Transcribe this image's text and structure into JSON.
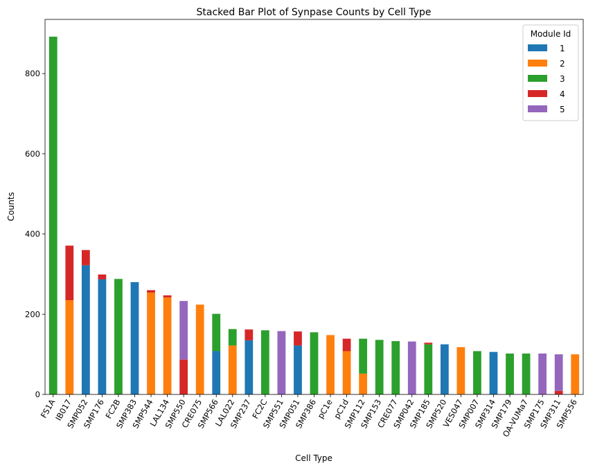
{
  "chart_data": {
    "type": "bar",
    "stacked": true,
    "title": "Stacked Bar Plot of Synpase Counts by Cell Type",
    "xlabel": "Cell Type",
    "ylabel": "Counts",
    "ylim": [
      0,
      935
    ],
    "yticks": [
      0,
      200,
      400,
      600,
      800
    ],
    "grid": false,
    "legend": {
      "title": "Module Id",
      "position": "top-right"
    },
    "categories": [
      "FS1A",
      "IB017",
      "SMP052",
      "SMP176",
      "FC2B",
      "SMP383",
      "SMP544",
      "LAL134",
      "SMP550",
      "CRE075",
      "SMP566",
      "LAL022",
      "SMP237",
      "FC2C",
      "SMP551",
      "SMP051",
      "SMP386",
      "pC1e",
      "pC1d",
      "SMP112",
      "SMP153",
      "CRE077",
      "SMP042",
      "SMP185",
      "SMP520",
      "VES047",
      "SMP007",
      "SMP314",
      "SMP179",
      "OA-VUMa7",
      "SMP175",
      "SMP311",
      "SMP556"
    ],
    "series": [
      {
        "name": "1",
        "color": "#1f77b4",
        "values": [
          0,
          0,
          322,
          287,
          0,
          280,
          0,
          0,
          0,
          0,
          108,
          0,
          135,
          0,
          0,
          122,
          0,
          0,
          0,
          0,
          0,
          0,
          0,
          0,
          125,
          0,
          0,
          106,
          0,
          0,
          0,
          0,
          0
        ]
      },
      {
        "name": "2",
        "color": "#ff7f0e",
        "values": [
          0,
          235,
          0,
          0,
          0,
          0,
          254,
          242,
          0,
          224,
          0,
          122,
          0,
          0,
          0,
          0,
          0,
          148,
          108,
          52,
          0,
          0,
          0,
          0,
          0,
          118,
          0,
          0,
          0,
          0,
          0,
          0,
          100
        ]
      },
      {
        "name": "3",
        "color": "#2ca02c",
        "values": [
          892,
          0,
          0,
          0,
          288,
          0,
          0,
          0,
          0,
          0,
          93,
          41,
          0,
          160,
          0,
          0,
          155,
          0,
          0,
          87,
          136,
          133,
          0,
          125,
          0,
          0,
          108,
          0,
          102,
          102,
          0,
          0,
          0
        ]
      },
      {
        "name": "4",
        "color": "#d62728",
        "values": [
          0,
          136,
          38,
          12,
          0,
          0,
          6,
          5,
          87,
          0,
          0,
          0,
          27,
          0,
          0,
          35,
          0,
          0,
          31,
          0,
          0,
          0,
          0,
          4,
          0,
          0,
          0,
          0,
          0,
          0,
          0,
          9,
          0
        ]
      },
      {
        "name": "5",
        "color": "#9467bd",
        "values": [
          0,
          0,
          0,
          0,
          0,
          0,
          0,
          0,
          146,
          0,
          0,
          0,
          0,
          0,
          158,
          0,
          0,
          0,
          0,
          0,
          0,
          0,
          132,
          0,
          0,
          0,
          0,
          0,
          0,
          0,
          102,
          91,
          0
        ]
      }
    ]
  }
}
